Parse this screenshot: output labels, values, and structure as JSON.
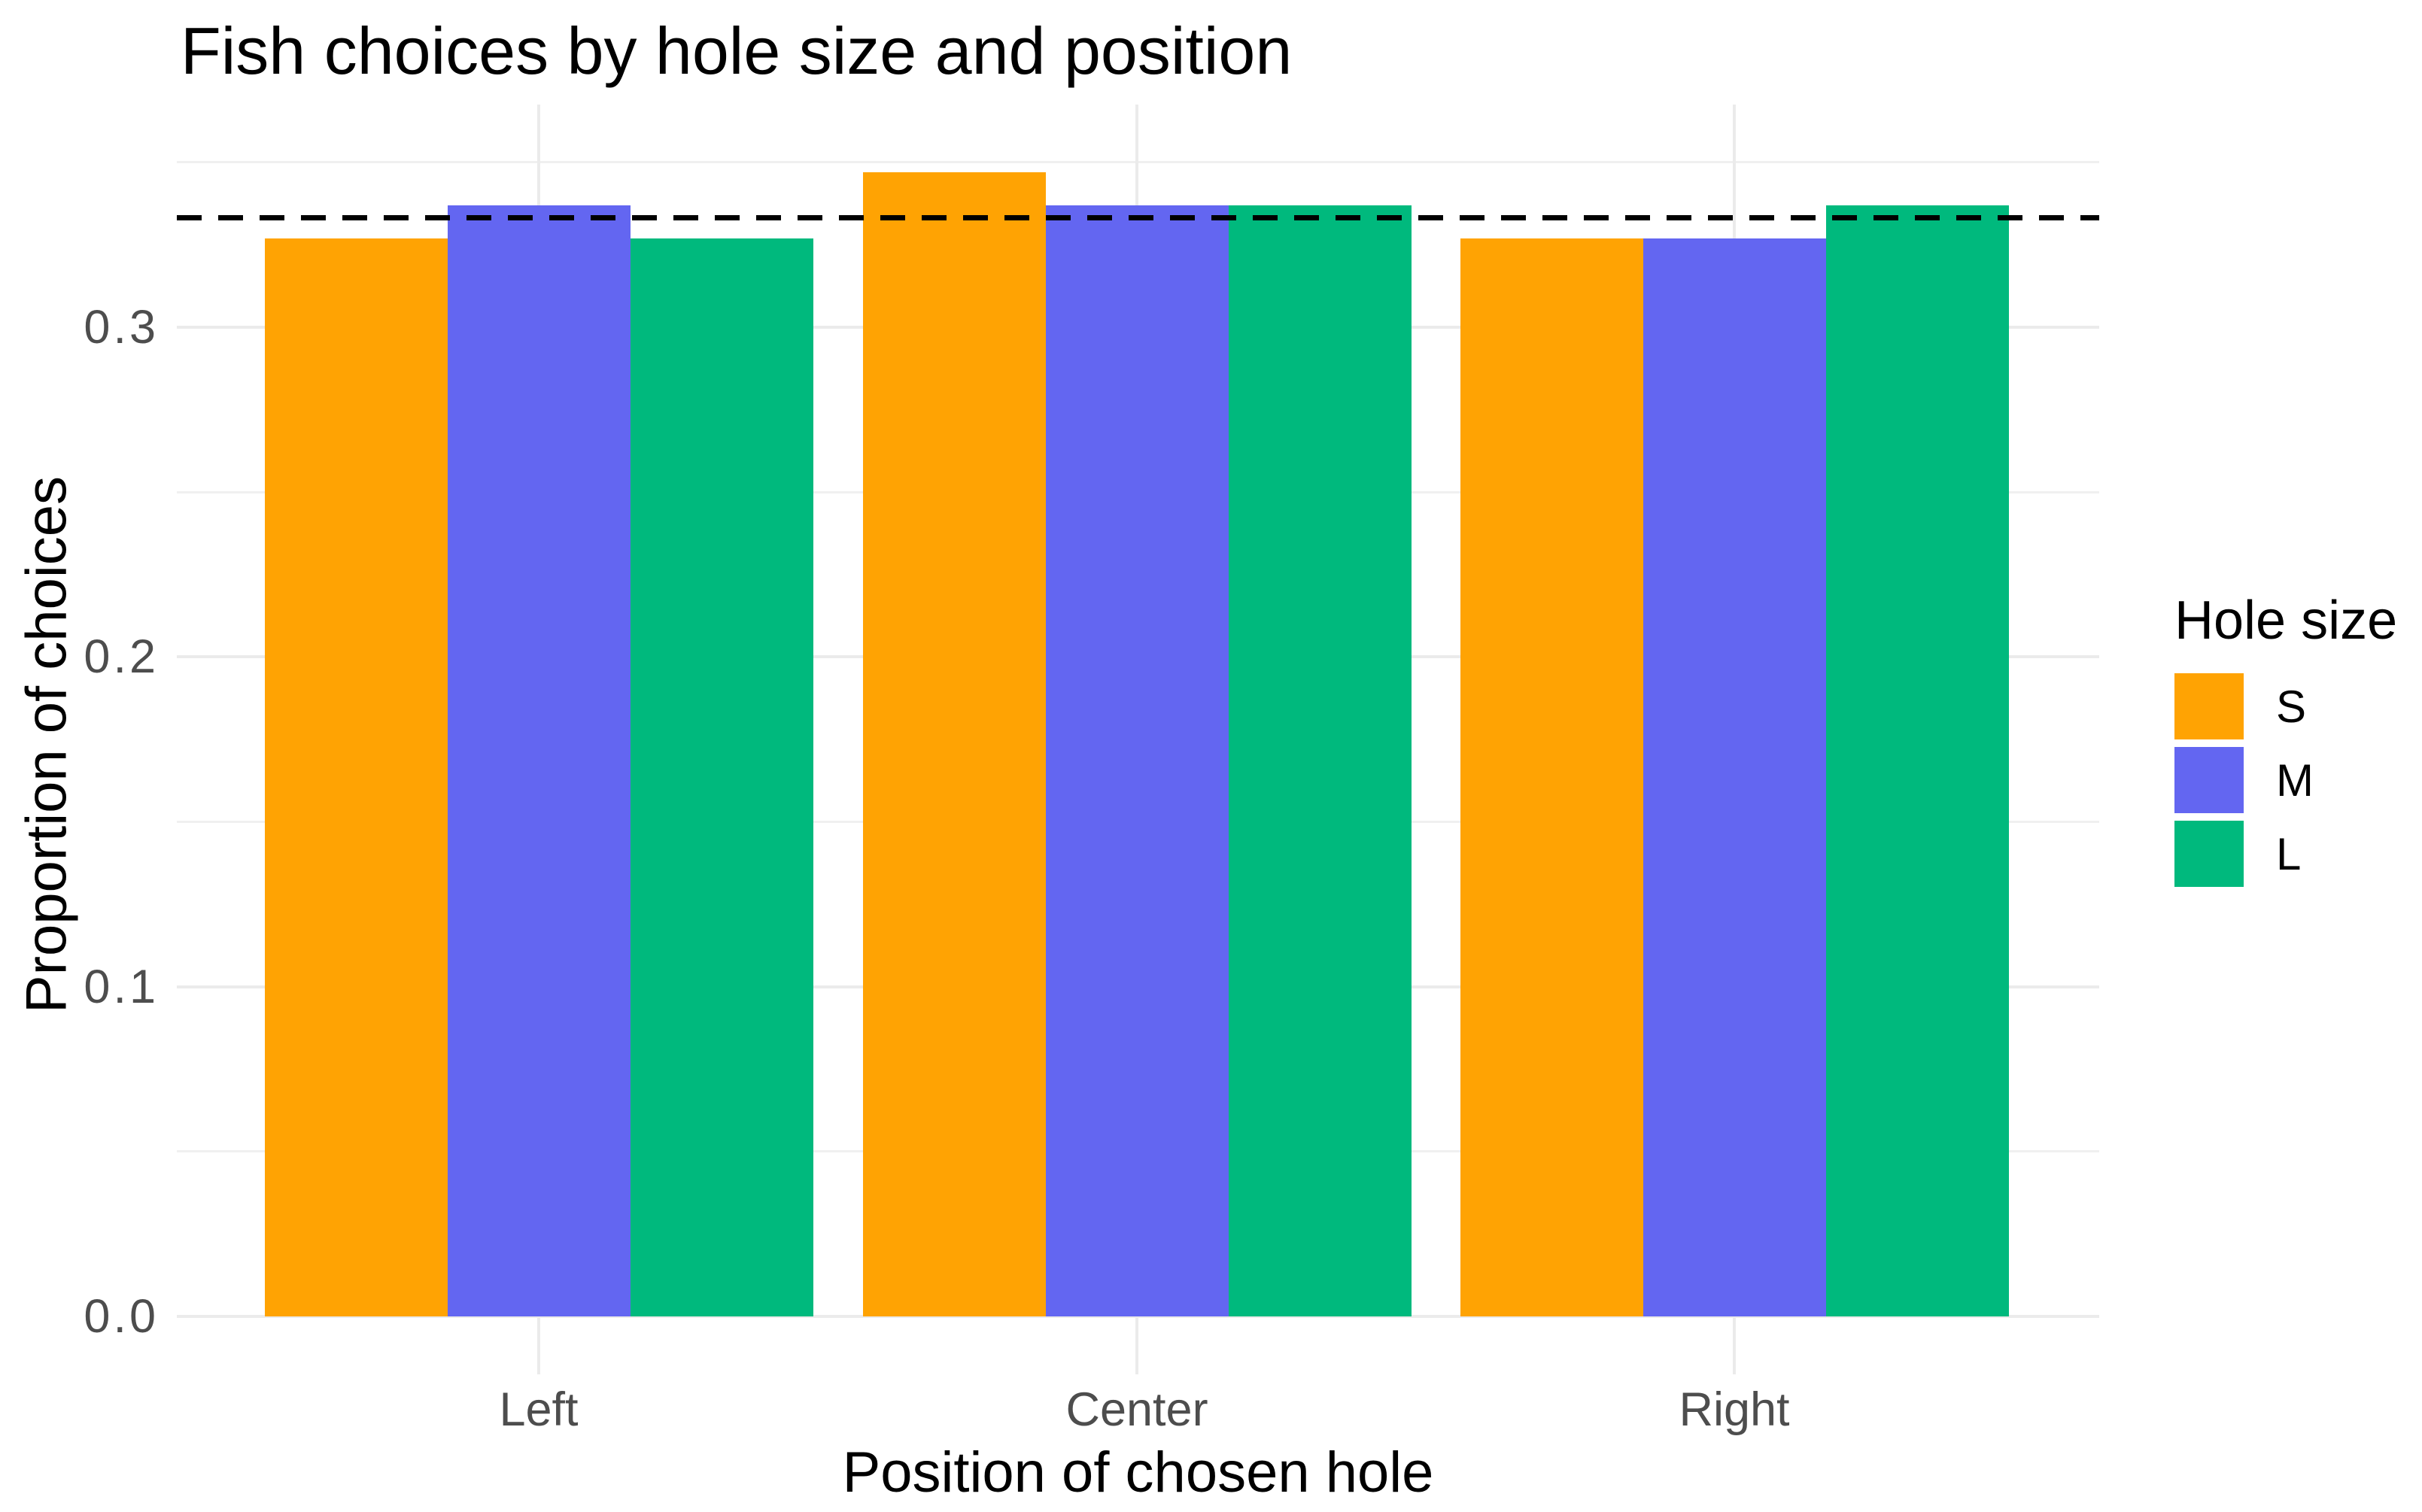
{
  "title": "Fish choices by hole size and position",
  "chart_data": {
    "type": "bar",
    "title": "Fish choices by hole size and position",
    "xlabel": "Position of chosen hole",
    "ylabel": "Proportion of choices",
    "categories": [
      "Left",
      "Center",
      "Right"
    ],
    "series": [
      {
        "name": "S",
        "color": "#FFA303",
        "values": [
          0.327,
          0.347,
          0.327
        ]
      },
      {
        "name": "M",
        "color": "#6366F1",
        "values": [
          0.337,
          0.337,
          0.327
        ]
      },
      {
        "name": "L",
        "color": "#00B97D",
        "values": [
          0.327,
          0.337,
          0.337
        ]
      }
    ],
    "reference_line": {
      "value": 0.3333,
      "style": "dashed",
      "color": "#000000"
    },
    "y_ticks": [
      0,
      0.1,
      0.2,
      0.3
    ],
    "y_tick_labels": [
      "0.0",
      "0.1",
      "0.2",
      "0.3"
    ],
    "y_minor_ticks": [
      0.05,
      0.15,
      0.25,
      0.35
    ],
    "ylim": [
      -0.0176,
      0.3676
    ],
    "grid": true,
    "legend": {
      "title": "Hole size",
      "position": "right",
      "entries": [
        "S",
        "M",
        "L"
      ]
    }
  },
  "colors": {
    "background": "#FFFFFF",
    "grid_major": "#EBEBEB",
    "grid_minor": "#F0F0F0",
    "tick_label": "#4D4D4D",
    "text": "#000000"
  }
}
